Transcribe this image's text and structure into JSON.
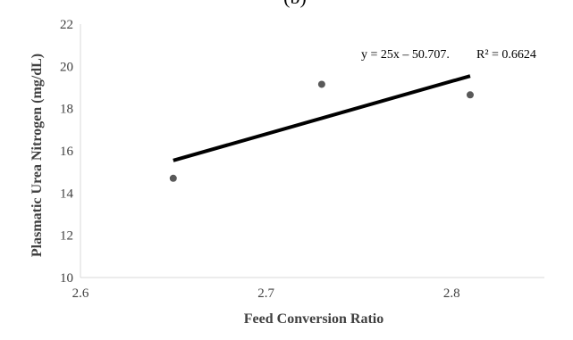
{
  "panel_label": "(b)",
  "chart_data": {
    "type": "scatter",
    "xlabel": "Feed Conversion Ratio",
    "ylabel": "Plasmatic Urea Nitrogen (mg/dL)",
    "xlim": [
      2.6,
      2.85
    ],
    "ylim": [
      10,
      22
    ],
    "x_ticks": [
      "2.6",
      "2.7",
      "2.8"
    ],
    "y_ticks": [
      "10",
      "12",
      "14",
      "16",
      "18",
      "20",
      "22"
    ],
    "grid": false,
    "points": [
      {
        "x": 2.65,
        "y": 14.7
      },
      {
        "x": 2.73,
        "y": 19.15
      },
      {
        "x": 2.81,
        "y": 18.65
      }
    ],
    "trendline": {
      "slope": 25,
      "intercept": -50.707,
      "x_range": [
        2.65,
        2.81
      ],
      "equation": "y = 25x – 50.707.",
      "r_squared": "R² = 0.6624"
    },
    "colors": {
      "marker": "#595959",
      "trendline": "#000000",
      "axis": "#d9d9d9"
    }
  }
}
